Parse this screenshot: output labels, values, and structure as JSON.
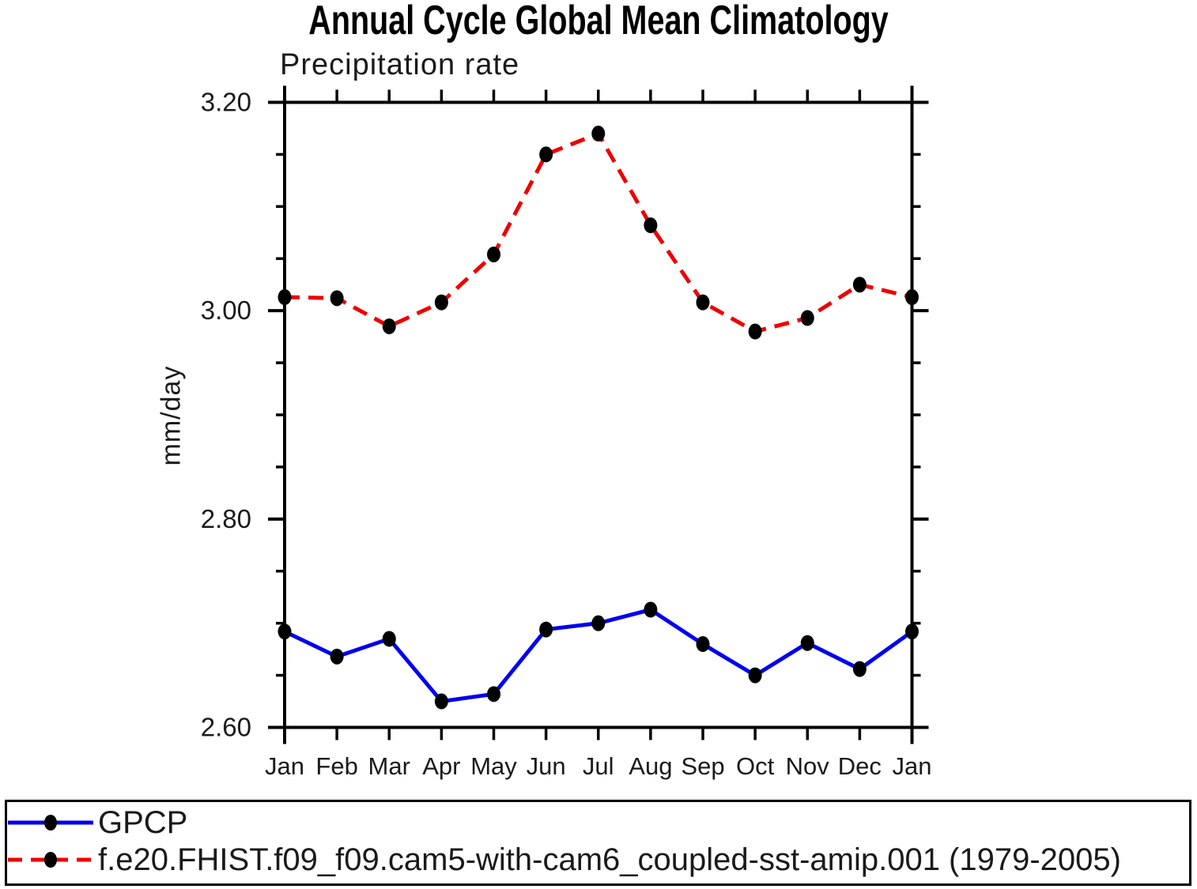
{
  "chart_data": {
    "type": "line",
    "title": "Annual Cycle Global Mean Climatology",
    "subtitle": "Precipitation rate",
    "ylabel": "mm/day",
    "xlabel": "",
    "categories": [
      "Jan",
      "Feb",
      "Mar",
      "Apr",
      "May",
      "Jun",
      "Jul",
      "Aug",
      "Sep",
      "Oct",
      "Nov",
      "Dec",
      "Jan"
    ],
    "series": [
      {
        "name": "GPCP",
        "color": "#0000ee",
        "style": "solid",
        "marker": "filled-circle",
        "marker_color": "#000000",
        "values": [
          2.692,
          2.668,
          2.685,
          2.625,
          2.632,
          2.694,
          2.7,
          2.713,
          2.68,
          2.65,
          2.681,
          2.656,
          2.692
        ]
      },
      {
        "name": "f.e20.FHIST.f09_f09.cam5-with-cam6_coupled-sst-amip.001 (1979-2005)",
        "color": "#ee0000",
        "style": "dashed",
        "marker": "filled-circle",
        "marker_color": "#000000",
        "values": [
          3.013,
          3.012,
          2.985,
          3.008,
          3.054,
          3.15,
          3.17,
          3.082,
          3.008,
          2.98,
          2.993,
          3.025,
          3.013
        ]
      }
    ],
    "ylim": [
      2.6,
      3.2
    ],
    "yticks_major": [
      2.6,
      2.8,
      3.0,
      3.2
    ],
    "ytick_minor_step": 0.05,
    "ytick_label_format": "2dp",
    "grid": false,
    "legend_position": "bottom-box",
    "axis_color": "#000000"
  }
}
